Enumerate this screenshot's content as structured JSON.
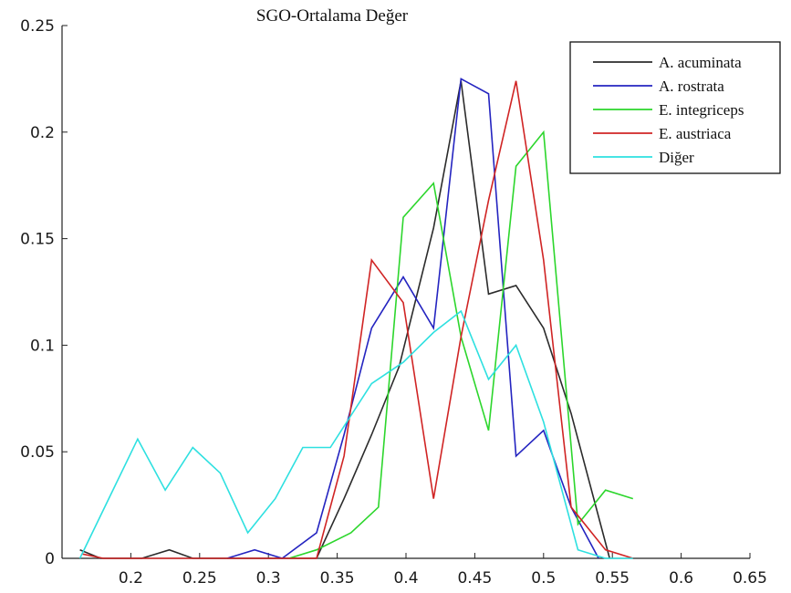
{
  "chart_data": {
    "type": "line",
    "title": "SGO-Ortalama Değer",
    "xlabel": "",
    "ylabel": "",
    "xlim": [
      0.15,
      0.65
    ],
    "ylim": [
      0,
      0.25
    ],
    "x_ticks": [
      {
        "value": 0.2,
        "label": "0.2"
      },
      {
        "value": 0.25,
        "label": "0.25"
      },
      {
        "value": 0.3,
        "label": "0.3"
      },
      {
        "value": 0.35,
        "label": "0.35"
      },
      {
        "value": 0.4,
        "label": "0.4"
      },
      {
        "value": 0.45,
        "label": "0.45"
      },
      {
        "value": 0.5,
        "label": "0.5"
      },
      {
        "value": 0.55,
        "label": "0.55"
      },
      {
        "value": 0.6,
        "label": "0.6"
      },
      {
        "value": 0.65,
        "label": "0.65"
      }
    ],
    "y_ticks": [
      {
        "value": 0,
        "label": "0"
      },
      {
        "value": 0.05,
        "label": "0.05"
      },
      {
        "value": 0.1,
        "label": "0.1"
      },
      {
        "value": 0.15,
        "label": "0.15"
      },
      {
        "value": 0.2,
        "label": "0.2"
      },
      {
        "value": 0.25,
        "label": "0.25"
      }
    ],
    "grid": false,
    "legend_position": "top-right",
    "series": [
      {
        "name": "A. acuminata",
        "color": "#2b2b2b",
        "points": [
          [
            0.163,
            0.004
          ],
          [
            0.178,
            0.0
          ],
          [
            0.193,
            0.0
          ],
          [
            0.208,
            0.0
          ],
          [
            0.228,
            0.004
          ],
          [
            0.245,
            0.0
          ],
          [
            0.265,
            0.0
          ],
          [
            0.285,
            0.0
          ],
          [
            0.305,
            0.0
          ],
          [
            0.325,
            0.0
          ],
          [
            0.335,
            0.0
          ],
          [
            0.355,
            0.028
          ],
          [
            0.375,
            0.058
          ],
          [
            0.395,
            0.09
          ],
          [
            0.42,
            0.155
          ],
          [
            0.44,
            0.224
          ],
          [
            0.46,
            0.124
          ],
          [
            0.48,
            0.128
          ],
          [
            0.5,
            0.108
          ],
          [
            0.52,
            0.068
          ],
          [
            0.548,
            0.0
          ]
        ]
      },
      {
        "name": "A. rostrata",
        "color": "#2424c0",
        "points": [
          [
            0.27,
            0.0
          ],
          [
            0.29,
            0.004
          ],
          [
            0.31,
            0.0
          ],
          [
            0.335,
            0.012
          ],
          [
            0.355,
            0.058
          ],
          [
            0.375,
            0.108
          ],
          [
            0.398,
            0.132
          ],
          [
            0.42,
            0.108
          ],
          [
            0.44,
            0.225
          ],
          [
            0.46,
            0.218
          ],
          [
            0.48,
            0.048
          ],
          [
            0.5,
            0.06
          ],
          [
            0.52,
            0.024
          ],
          [
            0.54,
            0.0
          ]
        ]
      },
      {
        "name": "E. integriceps",
        "color": "#2cd62c",
        "points": [
          [
            0.315,
            0.0
          ],
          [
            0.335,
            0.004
          ],
          [
            0.36,
            0.012
          ],
          [
            0.38,
            0.024
          ],
          [
            0.398,
            0.16
          ],
          [
            0.42,
            0.176
          ],
          [
            0.44,
            0.104
          ],
          [
            0.46,
            0.06
          ],
          [
            0.48,
            0.184
          ],
          [
            0.5,
            0.2
          ],
          [
            0.525,
            0.016
          ],
          [
            0.545,
            0.032
          ],
          [
            0.565,
            0.028
          ]
        ]
      },
      {
        "name": "E. austriaca",
        "color": "#d02424",
        "points": [
          [
            0.165,
            0.002
          ],
          [
            0.18,
            0.0
          ],
          [
            0.2,
            0.0
          ],
          [
            0.225,
            0.0
          ],
          [
            0.245,
            0.0
          ],
          [
            0.265,
            0.0
          ],
          [
            0.335,
            0.0
          ],
          [
            0.355,
            0.048
          ],
          [
            0.375,
            0.14
          ],
          [
            0.398,
            0.12
          ],
          [
            0.42,
            0.028
          ],
          [
            0.44,
            0.104
          ],
          [
            0.46,
            0.168
          ],
          [
            0.48,
            0.224
          ],
          [
            0.5,
            0.14
          ],
          [
            0.52,
            0.024
          ],
          [
            0.545,
            0.004
          ],
          [
            0.565,
            0.0
          ]
        ]
      },
      {
        "name": "Diğer",
        "color": "#2ee0e0",
        "points": [
          [
            0.163,
            0.0
          ],
          [
            0.205,
            0.056
          ],
          [
            0.225,
            0.032
          ],
          [
            0.245,
            0.052
          ],
          [
            0.265,
            0.04
          ],
          [
            0.285,
            0.012
          ],
          [
            0.305,
            0.028
          ],
          [
            0.325,
            0.052
          ],
          [
            0.345,
            0.052
          ],
          [
            0.375,
            0.082
          ],
          [
            0.398,
            0.092
          ],
          [
            0.42,
            0.106
          ],
          [
            0.44,
            0.116
          ],
          [
            0.46,
            0.084
          ],
          [
            0.48,
            0.1
          ],
          [
            0.5,
            0.064
          ],
          [
            0.525,
            0.004
          ],
          [
            0.545,
            0.0
          ],
          [
            0.565,
            0.0
          ]
        ]
      }
    ]
  }
}
